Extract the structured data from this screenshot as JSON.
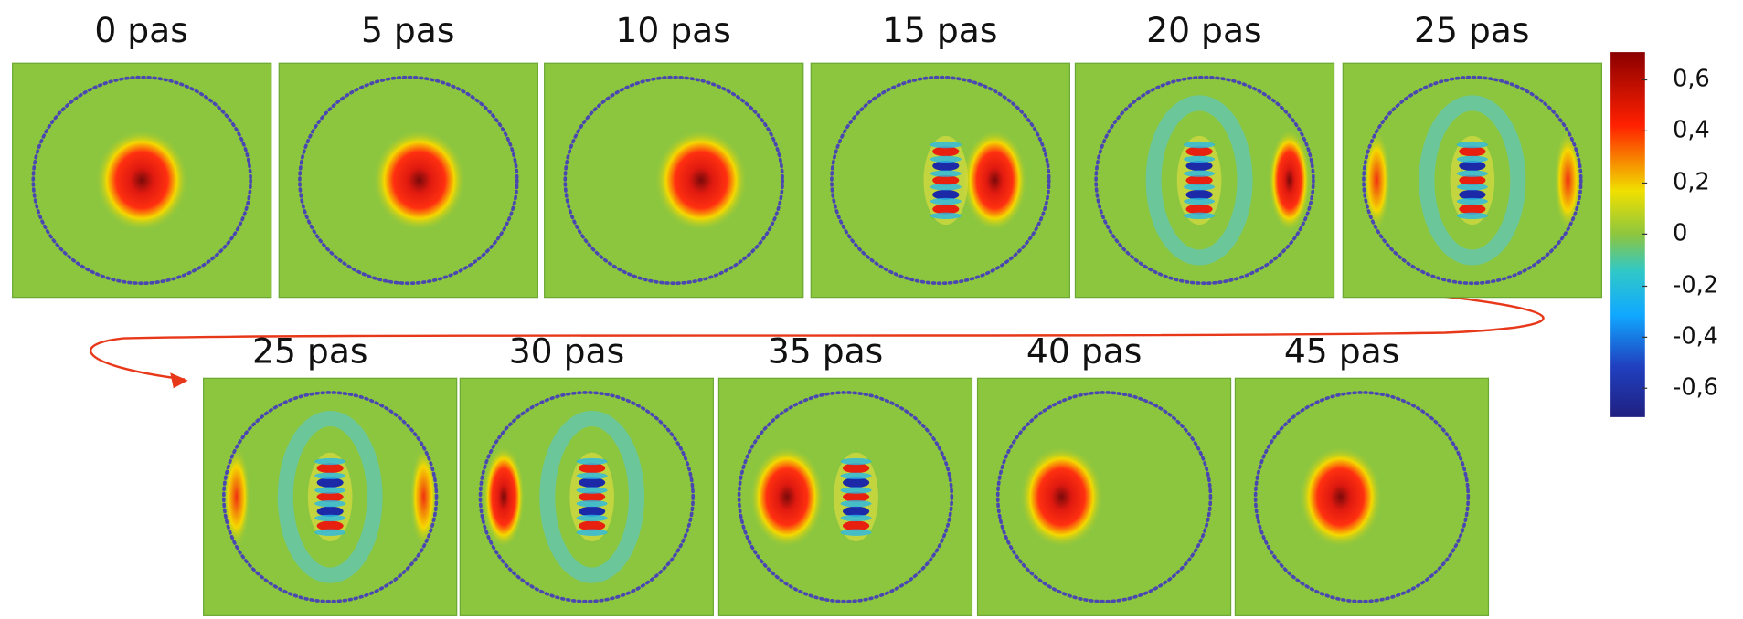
{
  "row1": {
    "labels": [
      "0 pas",
      "5 pas",
      "10 pas",
      "15 pas",
      "20 pas",
      "25 pas"
    ]
  },
  "row2": {
    "labels": [
      "25 pas",
      "30 pas",
      "35 pas",
      "40 pas",
      "45 pas"
    ]
  },
  "colorbar": {
    "ticks": [
      "0,6",
      "0,4",
      "0,2",
      "0",
      "-0,2",
      "-0,4",
      "-0,6"
    ]
  }
}
